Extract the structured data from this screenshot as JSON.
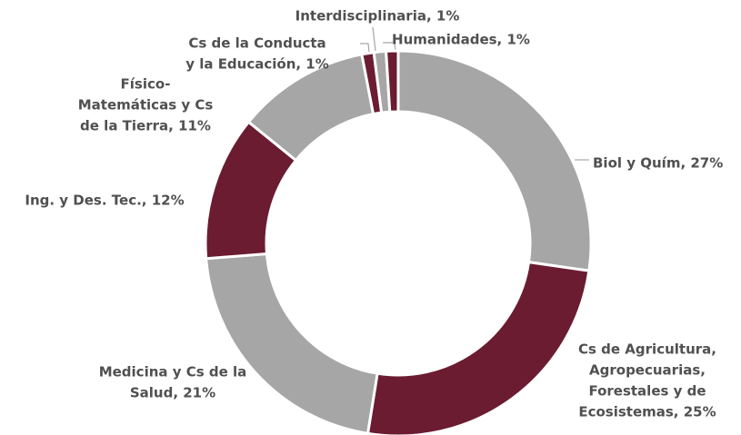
{
  "chart_data": {
    "type": "donut",
    "labels": [
      [
        "Biol y Quím, 27%"
      ],
      [
        "Cs de Agricultura,",
        "Agropecuarias,",
        "Forestales y de",
        "Ecosistemas, 25%"
      ],
      [
        "Medicina y Cs de la",
        "Salud, 21%"
      ],
      [
        "Ing. y Des. Tec., 12%"
      ],
      [
        "Físico-",
        "Matemáticas y Cs",
        "de la Tierra, 11%"
      ],
      [
        "Cs de la Conducta",
        "y la Educación, 1%"
      ],
      [
        "Interdisciplinaria, 1%"
      ],
      [
        "Humanidades, 1%"
      ]
    ],
    "values": [
      27,
      25,
      21,
      12,
      11,
      1,
      1,
      1
    ],
    "colors": [
      "#a6a6a6",
      "#6b1c31",
      "#a6a6a6",
      "#6b1c31",
      "#a6a6a6",
      "#6b1c31",
      "#a6a6a6",
      "#6b1c31"
    ]
  }
}
